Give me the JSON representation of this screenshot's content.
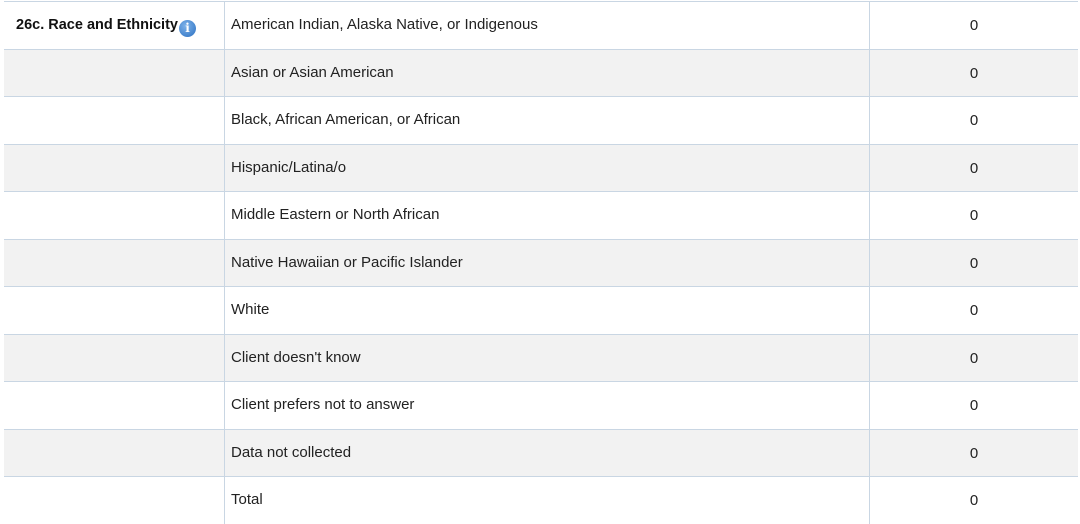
{
  "section": {
    "title": "26c. Race and Ethnicity",
    "info_icon": "info-icon"
  },
  "rows": [
    {
      "label": "American Indian, Alaska Native, or Indigenous",
      "value": "0"
    },
    {
      "label": "Asian or Asian American",
      "value": "0"
    },
    {
      "label": "Black, African American, or African",
      "value": "0"
    },
    {
      "label": "Hispanic/Latina/o",
      "value": "0"
    },
    {
      "label": "Middle Eastern or North African",
      "value": "0"
    },
    {
      "label": "Native Hawaiian or Pacific Islander",
      "value": "0"
    },
    {
      "label": "White",
      "value": "0"
    },
    {
      "label": "Client doesn't know",
      "value": "0"
    },
    {
      "label": "Client prefers not to answer",
      "value": "0"
    },
    {
      "label": "Data not collected",
      "value": "0"
    },
    {
      "label": "Total",
      "value": "0"
    }
  ],
  "colors": {
    "border": "#c9d6e3",
    "alt_row": "#f2f2f2",
    "info_icon": "#2a6fc1"
  }
}
